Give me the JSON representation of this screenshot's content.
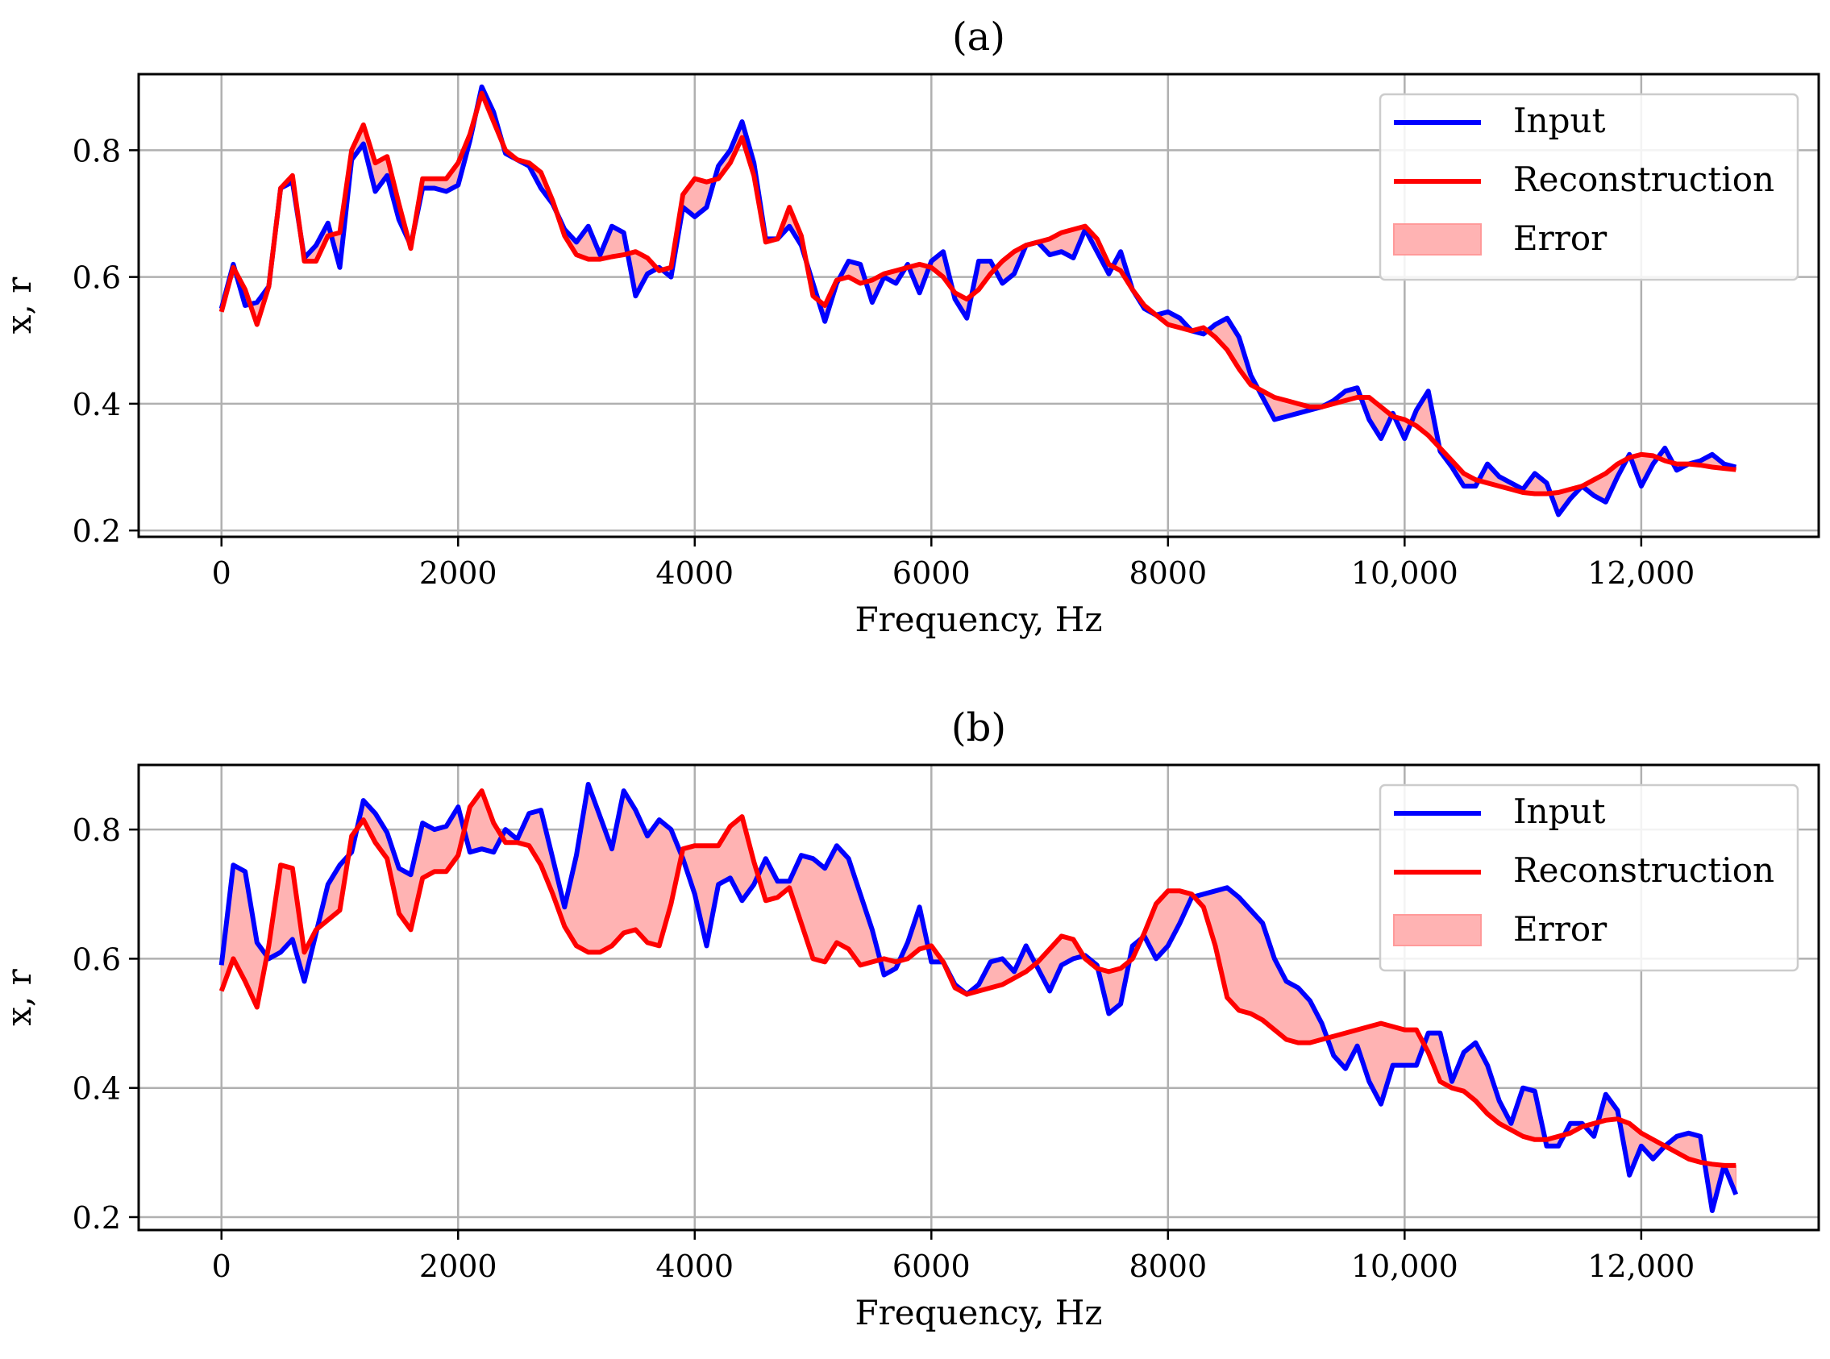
{
  "chart_data": [
    {
      "type": "line",
      "title": "(a)",
      "xlabel": "Frequency, Hz",
      "ylabel": "x, r",
      "xlim": [
        -700,
        13500
      ],
      "ylim": [
        0.19,
        0.92
      ],
      "xticks": [
        0,
        2000,
        4000,
        6000,
        8000,
        10000,
        12000
      ],
      "xtick_labels": [
        "0",
        "2000",
        "4000",
        "6000",
        "8000",
        "10,000",
        "12,000"
      ],
      "yticks": [
        0.2,
        0.4,
        0.6,
        0.8
      ],
      "ytick_labels": [
        "0.2",
        "0.4",
        "0.6",
        "0.8"
      ],
      "grid": true,
      "legend": {
        "position": "top-right",
        "entries": [
          "Input",
          "Reconstruction",
          "Error"
        ]
      },
      "colors": {
        "input": "#0000ff",
        "reconstruction": "#ff0000",
        "error_fill": "#ffb3b3",
        "error_edge": "#ff9a9a"
      },
      "x": [
        0,
        100,
        200,
        300,
        400,
        500,
        600,
        700,
        800,
        900,
        1000,
        1100,
        1200,
        1300,
        1400,
        1500,
        1600,
        1700,
        1800,
        1900,
        2000,
        2100,
        2200,
        2300,
        2400,
        2500,
        2600,
        2700,
        2800,
        2900,
        3000,
        3100,
        3200,
        3300,
        3400,
        3500,
        3600,
        3700,
        3800,
        3900,
        4000,
        4100,
        4200,
        4300,
        4400,
        4500,
        4600,
        4700,
        4800,
        4900,
        5000,
        5100,
        5200,
        5300,
        5400,
        5500,
        5600,
        5700,
        5800,
        5900,
        6000,
        6100,
        6200,
        6300,
        6400,
        6500,
        6600,
        6700,
        6800,
        6900,
        7000,
        7100,
        7200,
        7300,
        7400,
        7500,
        7600,
        7700,
        7800,
        7900,
        8000,
        8100,
        8200,
        8300,
        8400,
        8500,
        8600,
        8700,
        8800,
        8900,
        9000,
        9100,
        9200,
        9300,
        9400,
        9500,
        9600,
        9700,
        9800,
        9900,
        10000,
        10100,
        10200,
        10300,
        10400,
        10500,
        10600,
        10700,
        10800,
        10900,
        11000,
        11100,
        11200,
        11300,
        11400,
        11500,
        11600,
        11700,
        11800,
        11900,
        12000,
        12100,
        12200,
        12300,
        12400,
        12500,
        12600,
        12700,
        12800
      ],
      "series": [
        {
          "name": "Input",
          "values": [
            0.55,
            0.62,
            0.555,
            0.56,
            0.585,
            0.74,
            0.75,
            0.63,
            0.65,
            0.685,
            0.615,
            0.785,
            0.81,
            0.735,
            0.76,
            0.69,
            0.65,
            0.74,
            0.74,
            0.735,
            0.745,
            0.815,
            0.9,
            0.86,
            0.795,
            0.785,
            0.775,
            0.74,
            0.715,
            0.675,
            0.655,
            0.68,
            0.635,
            0.68,
            0.67,
            0.57,
            0.605,
            0.615,
            0.6,
            0.71,
            0.695,
            0.71,
            0.775,
            0.8,
            0.845,
            0.78,
            0.66,
            0.66,
            0.68,
            0.65,
            0.59,
            0.53,
            0.59,
            0.625,
            0.62,
            0.56,
            0.6,
            0.59,
            0.62,
            0.575,
            0.625,
            0.64,
            0.565,
            0.535,
            0.625,
            0.625,
            0.59,
            0.605,
            0.65,
            0.655,
            0.635,
            0.64,
            0.63,
            0.675,
            0.64,
            0.605,
            0.64,
            0.58,
            0.55,
            0.54,
            0.545,
            0.535,
            0.515,
            0.51,
            0.525,
            0.535,
            0.505,
            0.445,
            0.41,
            0.375,
            0.38,
            0.385,
            0.39,
            0.395,
            0.405,
            0.42,
            0.425,
            0.375,
            0.345,
            0.385,
            0.345,
            0.39,
            0.42,
            0.325,
            0.3,
            0.27,
            0.27,
            0.305,
            0.285,
            0.275,
            0.265,
            0.29,
            0.275,
            0.225,
            0.25,
            0.27,
            0.255,
            0.245,
            0.285,
            0.32,
            0.27,
            0.305,
            0.33,
            0.295,
            0.305,
            0.31,
            0.32,
            0.305,
            0.3
          ]
        },
        {
          "name": "Reconstruction",
          "values": [
            0.545,
            0.615,
            0.58,
            0.525,
            0.585,
            0.74,
            0.76,
            0.625,
            0.625,
            0.665,
            0.67,
            0.8,
            0.84,
            0.78,
            0.79,
            0.715,
            0.645,
            0.755,
            0.755,
            0.755,
            0.78,
            0.825,
            0.89,
            0.845,
            0.8,
            0.785,
            0.78,
            0.765,
            0.72,
            0.665,
            0.635,
            0.628,
            0.628,
            0.632,
            0.635,
            0.64,
            0.63,
            0.61,
            0.615,
            0.73,
            0.755,
            0.75,
            0.755,
            0.78,
            0.82,
            0.76,
            0.655,
            0.66,
            0.71,
            0.665,
            0.57,
            0.555,
            0.595,
            0.6,
            0.59,
            0.595,
            0.605,
            0.61,
            0.615,
            0.62,
            0.615,
            0.6,
            0.575,
            0.565,
            0.58,
            0.605,
            0.625,
            0.64,
            0.65,
            0.655,
            0.66,
            0.67,
            0.675,
            0.68,
            0.66,
            0.62,
            0.61,
            0.58,
            0.555,
            0.54,
            0.525,
            0.52,
            0.515,
            0.52,
            0.505,
            0.485,
            0.455,
            0.43,
            0.42,
            0.41,
            0.405,
            0.4,
            0.395,
            0.395,
            0.4,
            0.405,
            0.41,
            0.41,
            0.395,
            0.38,
            0.375,
            0.365,
            0.35,
            0.33,
            0.31,
            0.29,
            0.28,
            0.275,
            0.27,
            0.265,
            0.26,
            0.258,
            0.258,
            0.26,
            0.265,
            0.27,
            0.28,
            0.29,
            0.305,
            0.315,
            0.32,
            0.318,
            0.31,
            0.305,
            0.305,
            0.303,
            0.3,
            0.298,
            0.296
          ]
        }
      ]
    },
    {
      "type": "line",
      "title": "(b)",
      "xlabel": "Frequency, Hz",
      "ylabel": "x, r",
      "xlim": [
        -700,
        13500
      ],
      "ylim": [
        0.18,
        0.9
      ],
      "xticks": [
        0,
        2000,
        4000,
        6000,
        8000,
        10000,
        12000
      ],
      "xtick_labels": [
        "0",
        "2000",
        "4000",
        "6000",
        "8000",
        "10,000",
        "12,000"
      ],
      "yticks": [
        0.2,
        0.4,
        0.6,
        0.8
      ],
      "ytick_labels": [
        "0.2",
        "0.4",
        "0.6",
        "0.8"
      ],
      "grid": true,
      "legend": {
        "position": "top-right",
        "entries": [
          "Input",
          "Reconstruction",
          "Error"
        ]
      },
      "colors": {
        "input": "#0000ff",
        "reconstruction": "#ff0000",
        "error_fill": "#ffb3b3",
        "error_edge": "#ff9a9a"
      },
      "x": [
        0,
        100,
        200,
        300,
        400,
        500,
        600,
        700,
        800,
        900,
        1000,
        1100,
        1200,
        1300,
        1400,
        1500,
        1600,
        1700,
        1800,
        1900,
        2000,
        2100,
        2200,
        2300,
        2400,
        2500,
        2600,
        2700,
        2800,
        2900,
        3000,
        3100,
        3200,
        3300,
        3400,
        3500,
        3600,
        3700,
        3800,
        3900,
        4000,
        4100,
        4200,
        4300,
        4400,
        4500,
        4600,
        4700,
        4800,
        4900,
        5000,
        5100,
        5200,
        5300,
        5400,
        5500,
        5600,
        5700,
        5800,
        5900,
        6000,
        6100,
        6200,
        6300,
        6400,
        6500,
        6600,
        6700,
        6800,
        6900,
        7000,
        7100,
        7200,
        7300,
        7400,
        7500,
        7600,
        7700,
        7800,
        7900,
        8000,
        8100,
        8200,
        8300,
        8400,
        8500,
        8600,
        8700,
        8800,
        8900,
        9000,
        9100,
        9200,
        9300,
        9400,
        9500,
        9600,
        9700,
        9800,
        9900,
        10000,
        10100,
        10200,
        10300,
        10400,
        10500,
        10600,
        10700,
        10800,
        10900,
        11000,
        11100,
        11200,
        11300,
        11400,
        11500,
        11600,
        11700,
        11800,
        11900,
        12000,
        12100,
        12200,
        12300,
        12400,
        12500,
        12600,
        12700,
        12800
      ],
      "series": [
        {
          "name": "Input",
          "values": [
            0.59,
            0.745,
            0.735,
            0.625,
            0.6,
            0.61,
            0.63,
            0.565,
            0.64,
            0.715,
            0.745,
            0.765,
            0.845,
            0.825,
            0.795,
            0.74,
            0.73,
            0.81,
            0.8,
            0.805,
            0.835,
            0.765,
            0.77,
            0.765,
            0.8,
            0.785,
            0.825,
            0.83,
            0.755,
            0.68,
            0.76,
            0.87,
            0.82,
            0.77,
            0.86,
            0.83,
            0.79,
            0.815,
            0.8,
            0.755,
            0.7,
            0.62,
            0.715,
            0.725,
            0.69,
            0.715,
            0.755,
            0.72,
            0.72,
            0.76,
            0.755,
            0.74,
            0.775,
            0.755,
            0.7,
            0.645,
            0.575,
            0.585,
            0.625,
            0.68,
            0.595,
            0.595,
            0.56,
            0.545,
            0.56,
            0.595,
            0.6,
            0.58,
            0.62,
            0.585,
            0.55,
            0.59,
            0.6,
            0.605,
            0.59,
            0.515,
            0.53,
            0.62,
            0.635,
            0.6,
            0.62,
            0.655,
            0.695,
            0.7,
            0.705,
            0.71,
            0.695,
            0.675,
            0.655,
            0.6,
            0.565,
            0.555,
            0.535,
            0.5,
            0.45,
            0.43,
            0.465,
            0.41,
            0.375,
            0.435,
            0.435,
            0.435,
            0.485,
            0.485,
            0.41,
            0.455,
            0.47,
            0.435,
            0.38,
            0.345,
            0.4,
            0.395,
            0.31,
            0.31,
            0.345,
            0.345,
            0.325,
            0.39,
            0.365,
            0.265,
            0.31,
            0.29,
            0.31,
            0.325,
            0.33,
            0.325,
            0.21,
            0.28,
            0.235
          ]
        },
        {
          "name": "Reconstruction",
          "values": [
            0.55,
            0.6,
            0.565,
            0.525,
            0.62,
            0.745,
            0.74,
            0.61,
            0.645,
            0.66,
            0.675,
            0.79,
            0.815,
            0.78,
            0.755,
            0.67,
            0.645,
            0.725,
            0.735,
            0.735,
            0.76,
            0.835,
            0.86,
            0.81,
            0.78,
            0.78,
            0.775,
            0.745,
            0.7,
            0.65,
            0.62,
            0.61,
            0.61,
            0.62,
            0.64,
            0.645,
            0.625,
            0.62,
            0.685,
            0.77,
            0.775,
            0.775,
            0.775,
            0.805,
            0.82,
            0.75,
            0.69,
            0.695,
            0.71,
            0.655,
            0.6,
            0.595,
            0.625,
            0.615,
            0.59,
            0.595,
            0.6,
            0.595,
            0.6,
            0.615,
            0.62,
            0.595,
            0.555,
            0.545,
            0.55,
            0.555,
            0.56,
            0.57,
            0.58,
            0.595,
            0.615,
            0.635,
            0.63,
            0.6,
            0.585,
            0.58,
            0.585,
            0.6,
            0.64,
            0.685,
            0.705,
            0.705,
            0.7,
            0.68,
            0.62,
            0.54,
            0.52,
            0.515,
            0.505,
            0.49,
            0.475,
            0.47,
            0.47,
            0.475,
            0.48,
            0.485,
            0.49,
            0.495,
            0.5,
            0.495,
            0.49,
            0.49,
            0.455,
            0.41,
            0.4,
            0.395,
            0.38,
            0.36,
            0.345,
            0.335,
            0.325,
            0.32,
            0.32,
            0.325,
            0.33,
            0.34,
            0.345,
            0.35,
            0.352,
            0.345,
            0.33,
            0.32,
            0.31,
            0.3,
            0.29,
            0.285,
            0.282,
            0.28,
            0.28
          ]
        }
      ]
    }
  ]
}
